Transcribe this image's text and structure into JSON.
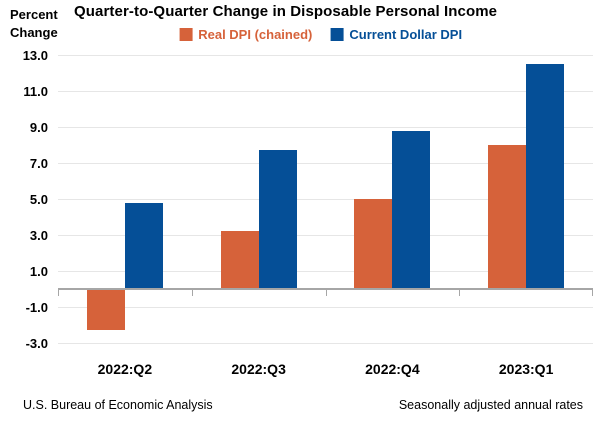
{
  "header": {
    "y_axis_title": "Percent\nChange",
    "title": "Quarter-to-Quarter Change in Disposable Personal Income"
  },
  "footer": {
    "left": "U.S. Bureau of Economic Analysis",
    "right": "Seasonally adjusted annual rates"
  },
  "colors": {
    "real_dpi": "#d6623a",
    "current_dollar_dpi": "#054f97",
    "gridline": "#e6e6e6",
    "axis": "#a6a6a6",
    "text": "#000000"
  },
  "chart_data": {
    "type": "bar",
    "title": "Quarter-to-Quarter Change in Disposable Personal Income",
    "xlabel": "",
    "ylabel": "Percent Change",
    "categories": [
      "2022:Q2",
      "2022:Q3",
      "2022:Q4",
      "2023:Q1"
    ],
    "series": [
      {
        "name": "Real DPI (chained)",
        "color": "#d6623a",
        "values": [
          -2.3,
          3.2,
          5.0,
          8.0
        ]
      },
      {
        "name": "Current Dollar DPI",
        "color": "#054f97",
        "values": [
          4.8,
          7.7,
          8.8,
          12.5
        ]
      }
    ],
    "ylim": [
      -3.0,
      13.0
    ],
    "yticks": [
      13.0,
      11.0,
      9.0,
      7.0,
      5.0,
      3.0,
      1.0,
      -1.0,
      -3.0
    ],
    "ytick_format": "one_decimal",
    "grid": true,
    "legend_position": "top",
    "annotations": [
      "Seasonally adjusted annual rates"
    ]
  }
}
